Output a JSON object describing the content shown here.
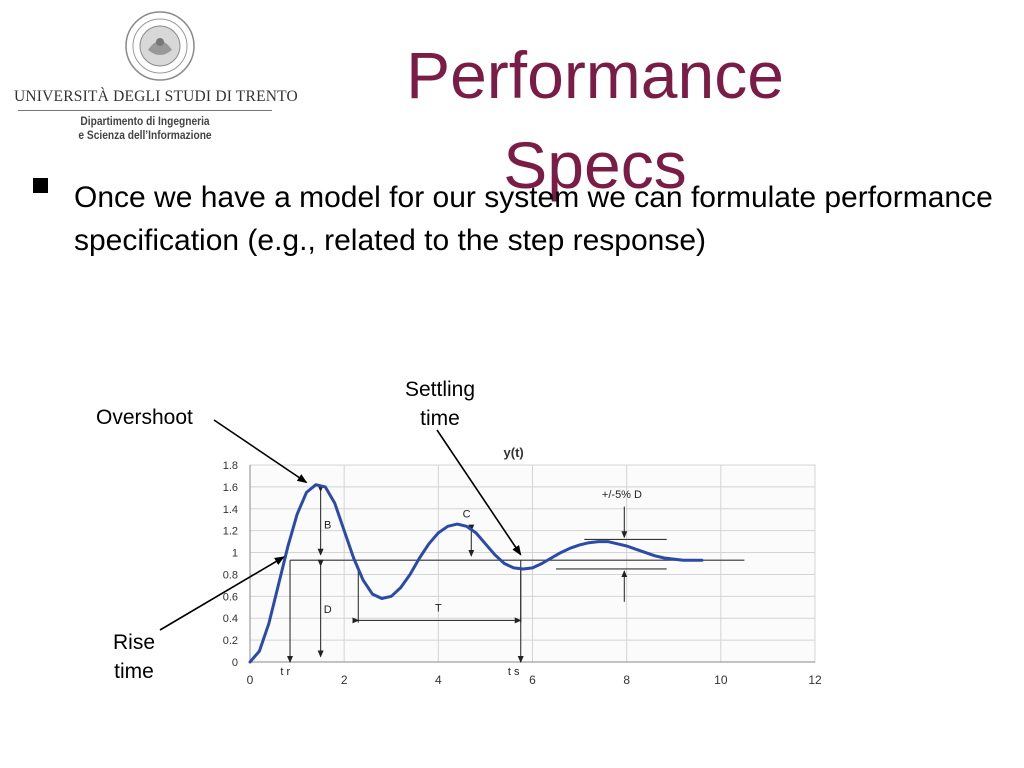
{
  "logo": {
    "university": "UNIVERSITÀ DEGLI STUDI DI TRENTO",
    "department_line1": "Dipartimento di Ingegneria",
    "department_line2": "e Scienza dell’Informazione"
  },
  "slide": {
    "title": "Performance Specs",
    "bullet": "Once we have a model for our system we can formulate performance specification  (e.g., related to the step response)"
  },
  "callouts": {
    "overshoot": "Overshoot",
    "settling_line1": "Settling",
    "settling_line2": "time",
    "rise_line1": "Rise",
    "rise_line2": "time"
  },
  "chart_data": {
    "type": "line",
    "title": "y(t)",
    "xlabel": "",
    "ylabel": "",
    "xlim": [
      0,
      12
    ],
    "ylim": [
      0,
      1.8
    ],
    "xticks": [
      0,
      2,
      4,
      6,
      8,
      10,
      12
    ],
    "yticks": [
      0,
      0.2,
      0.4,
      0.6,
      0.8,
      1,
      1.2,
      1.4,
      1.6,
      1.8
    ],
    "grid": true,
    "series": [
      {
        "name": "",
        "color": "#2a4ca8",
        "x": [
          0,
          0.2,
          0.4,
          0.6,
          0.8,
          1.0,
          1.2,
          1.4,
          1.6,
          1.8,
          2.0,
          2.2,
          2.4,
          2.6,
          2.8,
          3.0,
          3.2,
          3.4,
          3.6,
          3.8,
          4.0,
          4.2,
          4.4,
          4.6,
          4.8,
          5.0,
          5.2,
          5.4,
          5.6,
          5.8,
          6.0,
          6.2,
          6.4,
          6.6,
          6.8,
          7.0,
          7.2,
          7.4,
          7.6,
          7.8,
          8.0,
          8.2,
          8.4,
          8.6,
          8.8,
          9.0,
          9.2,
          9.4,
          9.6
        ],
        "y": [
          0,
          0.1,
          0.35,
          0.7,
          1.05,
          1.35,
          1.55,
          1.62,
          1.6,
          1.45,
          1.2,
          0.95,
          0.75,
          0.62,
          0.58,
          0.6,
          0.68,
          0.8,
          0.95,
          1.08,
          1.18,
          1.24,
          1.26,
          1.24,
          1.18,
          1.08,
          0.98,
          0.9,
          0.86,
          0.85,
          0.86,
          0.9,
          0.95,
          1.0,
          1.04,
          1.07,
          1.09,
          1.1,
          1.1,
          1.08,
          1.06,
          1.03,
          1.0,
          0.97,
          0.95,
          0.94,
          0.93,
          0.93,
          0.93
        ]
      }
    ],
    "annotations": [
      {
        "label": "B"
      },
      {
        "label": "C"
      },
      {
        "label": "D"
      },
      {
        "label": "T"
      },
      {
        "label": "+/-5% D"
      },
      {
        "label": "t r"
      },
      {
        "label": "t s"
      }
    ]
  }
}
